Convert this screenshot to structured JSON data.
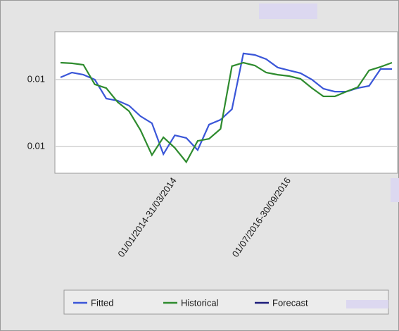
{
  "chart_data": {
    "type": "line",
    "categories": [
      null,
      null,
      null,
      null,
      null,
      null,
      null,
      null,
      null,
      null,
      "01/01/2014-31/03/2014",
      null,
      null,
      null,
      null,
      null,
      null,
      null,
      null,
      null,
      "01/07/2016-30/09/2016",
      null,
      null,
      null,
      null,
      null,
      null,
      null,
      null,
      null
    ],
    "series": [
      {
        "name": "Fitted",
        "color": "#3a56d8",
        "values": [
          0.01213,
          0.01242,
          0.01229,
          0.012,
          0.01086,
          0.01074,
          0.01044,
          0.00981,
          0.00939,
          0.00754,
          0.00867,
          0.00851,
          0.00779,
          0.00931,
          0.0096,
          0.01023,
          0.01356,
          0.01347,
          0.01322,
          0.01272,
          0.01255,
          0.01238,
          0.012,
          0.01145,
          0.01128,
          0.01128,
          0.01149,
          0.01162,
          0.01263,
          0.01263
        ]
      },
      {
        "name": "Historical",
        "color": "#2e8b2e",
        "values": [
          0.01301,
          0.01297,
          0.01288,
          0.01171,
          0.01149,
          0.01065,
          0.01011,
          0.00897,
          0.00749,
          0.00855,
          0.00792,
          0.00707,
          0.00833,
          0.00846,
          0.00905,
          0.0128,
          0.01301,
          0.01284,
          0.01242,
          0.01229,
          0.01221,
          0.01204,
          0.01149,
          0.01099,
          0.01099,
          0.01128,
          0.01154,
          0.01255,
          0.01276,
          0.01301
        ]
      },
      {
        "name": "Forecast",
        "color": "#1c1c7a",
        "values": [
          null,
          null,
          null,
          null,
          null,
          null,
          null,
          null,
          null,
          null,
          null,
          null,
          null,
          null,
          null,
          null,
          null,
          null,
          null,
          null,
          null,
          null,
          null,
          null,
          null,
          null,
          null,
          null,
          null,
          null
        ]
      }
    ],
    "ylim": [
      0.0064,
      0.01486
    ],
    "yticks": [
      {
        "value": 0.008,
        "label": "0.01"
      },
      {
        "value": 0.012,
        "label": "0.01"
      }
    ],
    "grid": true
  }
}
